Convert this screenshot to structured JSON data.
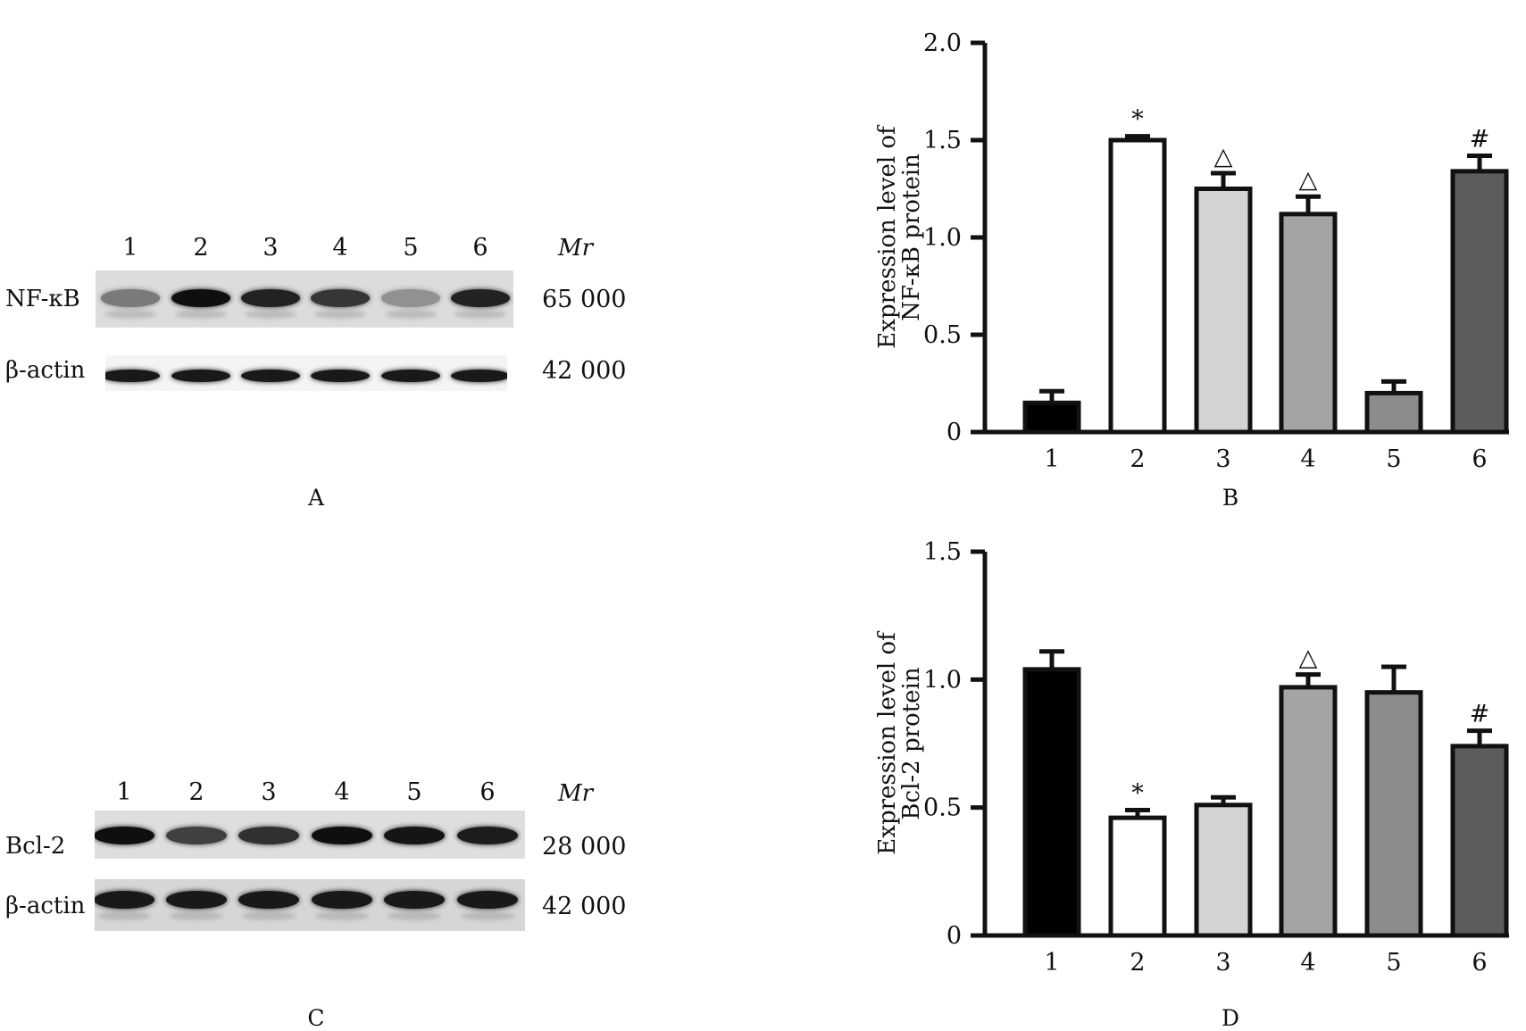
{
  "panels": {
    "a": {
      "letter": "A",
      "lanes": [
        "1",
        "2",
        "3",
        "4",
        "5",
        "6"
      ],
      "mr_label": "Mr",
      "rows": [
        {
          "protein": "NF-κB",
          "mw": "65 000",
          "intensity": [
            0.4,
            0.95,
            0.85,
            0.75,
            0.28,
            0.85
          ]
        },
        {
          "protein": "β-actin",
          "mw": "42 000",
          "intensity": [
            0.9,
            0.9,
            0.9,
            0.9,
            0.9,
            0.9
          ]
        }
      ]
    },
    "c": {
      "letter": "C",
      "lanes": [
        "1",
        "2",
        "3",
        "4",
        "5",
        "6"
      ],
      "mr_label": "Mr",
      "rows": [
        {
          "protein": "Bcl-2",
          "mw": "28 000",
          "intensity": [
            0.95,
            0.7,
            0.78,
            0.95,
            0.92,
            0.88
          ]
        },
        {
          "protein": "β-actin",
          "mw": "42 000",
          "intensity": [
            0.9,
            0.9,
            0.9,
            0.9,
            0.9,
            0.9
          ]
        }
      ]
    },
    "b": {
      "letter": "B"
    },
    "d": {
      "letter": "D"
    }
  },
  "chart_data": [
    {
      "type": "bar",
      "panel": "B",
      "categories": [
        "1",
        "2",
        "3",
        "4",
        "5",
        "6"
      ],
      "values": [
        0.15,
        1.5,
        1.25,
        1.12,
        0.2,
        1.34
      ],
      "errors": [
        0.06,
        0.02,
        0.08,
        0.09,
        0.06,
        0.08
      ],
      "annotations": [
        "",
        "*",
        "△",
        "△",
        "",
        "#"
      ],
      "colors": [
        "#000000",
        "#ffffff",
        "#d3d3d3",
        "#a4a4a6",
        "#8c8c8c",
        "#5c5c5c"
      ],
      "ylabel_line1": "Expression level of",
      "ylabel_line2": "NF-κB protein",
      "xlabel": "",
      "ylim": [
        0,
        2.0
      ],
      "yticks": [
        "0",
        "0.5",
        "1.0",
        "1.5",
        "2.0"
      ],
      "grid": false,
      "legend": "none"
    },
    {
      "type": "bar",
      "panel": "D",
      "categories": [
        "1",
        "2",
        "3",
        "4",
        "5",
        "6"
      ],
      "values": [
        1.04,
        0.46,
        0.51,
        0.97,
        0.95,
        0.74
      ],
      "errors": [
        0.07,
        0.03,
        0.03,
        0.05,
        0.1,
        0.06
      ],
      "annotations": [
        "",
        "*",
        "",
        "△",
        "",
        "#"
      ],
      "colors": [
        "#000000",
        "#ffffff",
        "#d3d3d3",
        "#a4a4a6",
        "#8c8c8c",
        "#5c5c5c"
      ],
      "ylabel_line1": "Expression level of",
      "ylabel_line2": "Bcl-2 protein",
      "xlabel": "",
      "ylim": [
        0,
        1.5
      ],
      "yticks": [
        "0",
        "0.5",
        "1.0",
        "1.5"
      ],
      "grid": false,
      "legend": "none"
    }
  ]
}
